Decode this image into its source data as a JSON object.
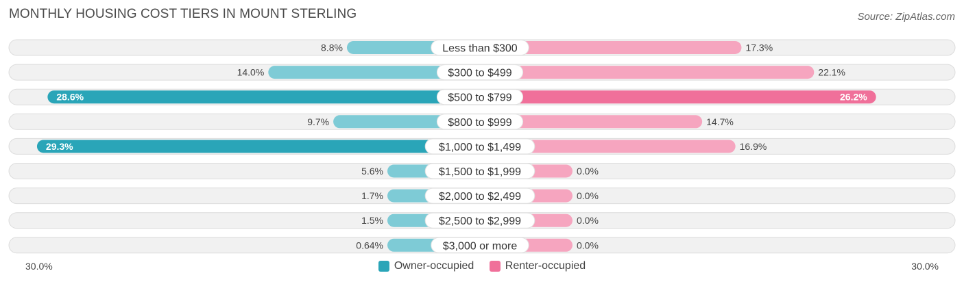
{
  "title": "MONTHLY HOUSING COST TIERS IN MOUNT STERLING",
  "source": "Source: ZipAtlas.com",
  "chart_data": {
    "type": "bar",
    "orientation": "diverging-horizontal",
    "categories": [
      "Less than $300",
      "$300 to $499",
      "$500 to $799",
      "$800 to $999",
      "$1,000 to $1,499",
      "$1,500 to $1,999",
      "$2,000 to $2,499",
      "$2,500 to $2,999",
      "$3,000 or more"
    ],
    "series": [
      {
        "name": "Owner-occupied",
        "values": [
          8.8,
          14.0,
          28.6,
          9.7,
          29.3,
          5.6,
          1.7,
          1.5,
          0.64
        ],
        "labels": [
          "8.8%",
          "14.0%",
          "28.6%",
          "9.7%",
          "29.3%",
          "5.6%",
          "1.7%",
          "1.5%",
          "0.64%"
        ]
      },
      {
        "name": "Renter-occupied",
        "values": [
          17.3,
          22.1,
          26.2,
          14.7,
          16.9,
          0.0,
          0.0,
          0.0,
          0.0
        ],
        "labels": [
          "17.3%",
          "22.1%",
          "26.2%",
          "14.7%",
          "16.9%",
          "0.0%",
          "0.0%",
          "0.0%",
          "0.0%"
        ]
      }
    ],
    "xlim": [
      -30,
      30
    ],
    "axis_left_label": "30.0%",
    "axis_right_label": "30.0%",
    "legend_position": "bottom-center"
  },
  "colors": {
    "owner_dark": "#2aa5b8",
    "owner_light": "#7ecbd6",
    "renter_dark": "#f0709a",
    "renter_light": "#f6a5bf"
  }
}
